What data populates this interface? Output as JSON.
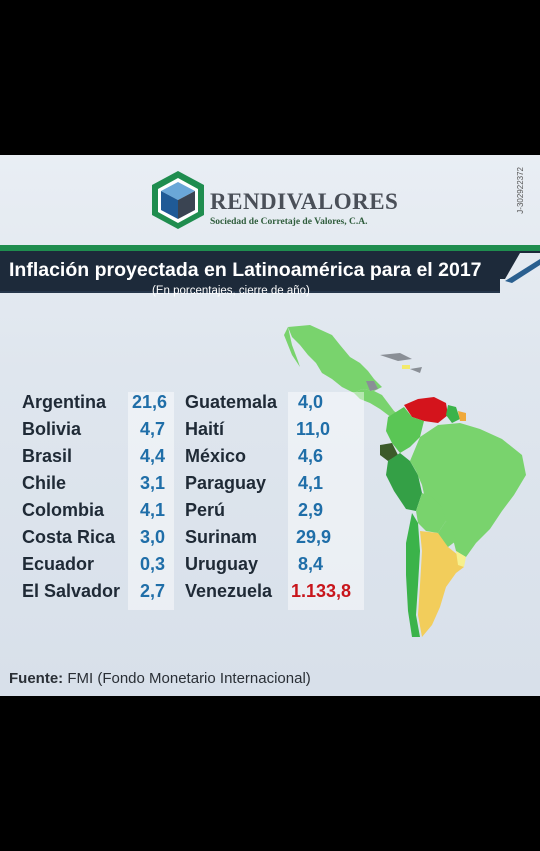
{
  "brand": {
    "name": "RENDIVALORES",
    "tagline": "Sociedad de Corretaje de Valores, C.A.",
    "code": "J-302922372",
    "colors": {
      "green": "#1f8d4f",
      "blue": "#2d6fa8",
      "gray": "#4a4f58"
    }
  },
  "banner": {
    "title": "Inflación proyectada en Latinoamérica para el 2017",
    "subtitle": "(En porcentajes, cierre de año)",
    "background": "#1d2a3a"
  },
  "left_column": [
    {
      "country": "Argentina",
      "value": "21,6"
    },
    {
      "country": "Bolivia",
      "value": "4,7"
    },
    {
      "country": "Brasil",
      "value": "4,4"
    },
    {
      "country": "Chile",
      "value": "3,1"
    },
    {
      "country": "Colombia",
      "value": "4,1"
    },
    {
      "country": "Costa Rica",
      "value": "3,0"
    },
    {
      "country": "Ecuador",
      "value": "0,3"
    },
    {
      "country": "El Salvador",
      "value": "2,7"
    }
  ],
  "right_column": [
    {
      "country": "Guatemala",
      "value": "4,0"
    },
    {
      "country": "Haití",
      "value": "11,0"
    },
    {
      "country": "México",
      "value": "4,6"
    },
    {
      "country": "Paraguay",
      "value": "4,1"
    },
    {
      "country": "Perú",
      "value": "2,9"
    },
    {
      "country": "Surinam",
      "value": "29,9"
    },
    {
      "country": "Uruguay",
      "value": "8,4"
    },
    {
      "country": "Venezuela",
      "value": "1.133,8",
      "highlight": "#c8151b"
    }
  ],
  "source": {
    "label": "Fuente:",
    "text": "FMI (Fondo Monetario Internacional)"
  },
  "map": {
    "name": "latin-america-map"
  }
}
